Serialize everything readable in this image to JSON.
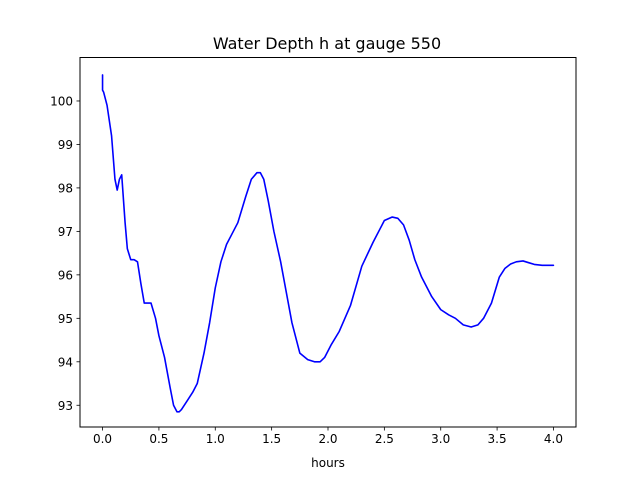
{
  "chart_data": {
    "type": "line",
    "title": "Water Depth h at gauge 550",
    "xlabel": "hours",
    "ylabel": "",
    "xlim": [
      -0.2,
      4.2
    ],
    "ylim": [
      92.5,
      101.0
    ],
    "xticks": [
      0.0,
      0.5,
      1.0,
      1.5,
      2.0,
      2.5,
      3.0,
      3.5,
      4.0
    ],
    "xtick_labels": [
      "0.0",
      "0.5",
      "1.0",
      "1.5",
      "2.0",
      "2.5",
      "3.0",
      "3.5",
      "4.0"
    ],
    "yticks": [
      93,
      94,
      95,
      96,
      97,
      98,
      99,
      100
    ],
    "ytick_labels": [
      "93",
      "94",
      "95",
      "96",
      "97",
      "98",
      "99",
      "100"
    ],
    "grid": false,
    "series": [
      {
        "color": "#0000ff",
        "x": [
          0.0,
          0.0,
          0.01,
          0.04,
          0.08,
          0.11,
          0.13,
          0.15,
          0.17,
          0.2,
          0.22,
          0.25,
          0.28,
          0.31,
          0.34,
          0.37,
          0.4,
          0.43,
          0.47,
          0.5,
          0.55,
          0.6,
          0.63,
          0.66,
          0.68,
          0.7,
          0.75,
          0.8,
          0.84,
          0.9,
          0.95,
          1.0,
          1.05,
          1.1,
          1.15,
          1.2,
          1.27,
          1.32,
          1.37,
          1.4,
          1.43,
          1.47,
          1.52,
          1.58,
          1.63,
          1.68,
          1.75,
          1.82,
          1.88,
          1.93,
          1.97,
          2.03,
          2.1,
          2.2,
          2.3,
          2.4,
          2.5,
          2.57,
          2.62,
          2.67,
          2.72,
          2.77,
          2.83,
          2.92,
          3.0,
          3.07,
          3.13,
          3.2,
          3.27,
          3.33,
          3.38,
          3.45,
          3.52,
          3.57,
          3.62,
          3.67,
          3.73,
          3.78,
          3.83,
          3.9,
          3.97,
          4.0
        ],
        "y": [
          100.6,
          100.25,
          100.2,
          99.9,
          99.2,
          98.2,
          97.95,
          98.2,
          98.3,
          97.2,
          96.6,
          96.35,
          96.35,
          96.3,
          95.8,
          95.35,
          95.35,
          95.35,
          95.0,
          94.6,
          94.1,
          93.4,
          93.0,
          92.85,
          92.85,
          92.9,
          93.1,
          93.3,
          93.5,
          94.2,
          94.9,
          95.7,
          96.3,
          96.7,
          96.95,
          97.2,
          97.8,
          98.2,
          98.35,
          98.35,
          98.2,
          97.7,
          97.0,
          96.3,
          95.6,
          94.9,
          94.2,
          94.05,
          94.0,
          94.0,
          94.1,
          94.4,
          94.7,
          95.3,
          96.2,
          96.75,
          97.25,
          97.33,
          97.3,
          97.15,
          96.8,
          96.35,
          95.95,
          95.5,
          95.2,
          95.08,
          95.0,
          94.85,
          94.8,
          94.85,
          95.0,
          95.35,
          95.95,
          96.15,
          96.25,
          96.3,
          96.32,
          96.28,
          96.24,
          96.22,
          96.22,
          96.22
        ]
      }
    ]
  }
}
